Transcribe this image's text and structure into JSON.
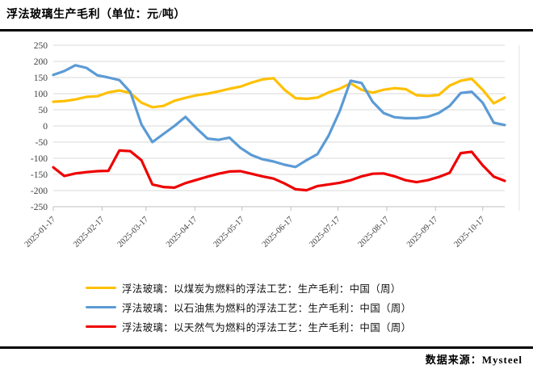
{
  "page": {
    "title": "浮法玻璃生产毛利（单位：元/吨）",
    "source": "数据来源：Mysteel"
  },
  "chart_data": {
    "type": "line",
    "title": "浮法玻璃生产毛利（单位：元/吨）",
    "ylabel": "",
    "xlabel": "",
    "ylim": [
      -250,
      250
    ],
    "ytick_step": 50,
    "grid": true,
    "legend_position": "bottom",
    "x": [
      "2025-01-17",
      "2025-01-24",
      "2025-01-31",
      "2025-02-07",
      "2025-02-14",
      "2025-02-21",
      "2025-02-28",
      "2025-03-07",
      "2025-03-14",
      "2025-03-21",
      "2025-03-28",
      "2025-04-04",
      "2025-04-11",
      "2025-04-18",
      "2025-04-25",
      "2025-05-02",
      "2025-05-09",
      "2025-05-16",
      "2025-05-23",
      "2025-05-30",
      "2025-06-06",
      "2025-06-13",
      "2025-06-20",
      "2025-06-27",
      "2025-07-04",
      "2025-07-11",
      "2025-07-18",
      "2025-07-25",
      "2025-08-01",
      "2025-08-08",
      "2025-08-15",
      "2025-08-22",
      "2025-08-29",
      "2025-09-05",
      "2025-09-12",
      "2025-09-19",
      "2025-09-26",
      "2025-10-03",
      "2025-10-10",
      "2025-10-17",
      "2025-10-24",
      "2025-10-31"
    ],
    "xticks": [
      "2025-01-17",
      "2025-02-17",
      "2025-03-17",
      "2025-04-17",
      "2025-05-17",
      "2025-06-17",
      "2025-07-17",
      "2025-08-17",
      "2025-09-17",
      "2025-10-17"
    ],
    "series": [
      {
        "name": "浮法玻璃：以煤炭为燃料的浮法工艺：生产毛利：中国（周）",
        "color": "#FFC000",
        "values": [
          75,
          77,
          82,
          90,
          92,
          104,
          110,
          102,
          72,
          58,
          62,
          78,
          87,
          95,
          100,
          107,
          115,
          122,
          134,
          144,
          148,
          112,
          86,
          84,
          88,
          104,
          115,
          132,
          112,
          103,
          112,
          117,
          114,
          95,
          93,
          96,
          125,
          140,
          146,
          112,
          70,
          88
        ]
      },
      {
        "name": "浮法玻璃：以石油焦为燃料的浮法工艺：生产毛利：中国（周）",
        "color": "#5B9BD5",
        "values": [
          158,
          170,
          188,
          180,
          157,
          150,
          142,
          105,
          5,
          -50,
          -25,
          0,
          28,
          -7,
          -39,
          -43,
          -36,
          -68,
          -90,
          -103,
          -110,
          -120,
          -127,
          -106,
          -87,
          -30,
          45,
          140,
          133,
          75,
          40,
          27,
          24,
          24,
          28,
          40,
          62,
          102,
          106,
          72,
          10,
          3
        ]
      },
      {
        "name": "浮法玻璃：以天然气为燃料的浮法工艺：生产毛利：中国（周）",
        "color": "#EE0000",
        "values": [
          -128,
          -155,
          -147,
          -143,
          -140,
          -139,
          -76,
          -78,
          -106,
          -181,
          -189,
          -191,
          -177,
          -167,
          -157,
          -148,
          -141,
          -140,
          -148,
          -156,
          -163,
          -178,
          -196,
          -199,
          -186,
          -181,
          -176,
          -168,
          -156,
          -148,
          -147,
          -156,
          -168,
          -174,
          -168,
          -158,
          -145,
          -84,
          -80,
          -122,
          -157,
          -170
        ]
      }
    ],
    "style": {
      "grid_color": "#d9d9d9",
      "axis_color": "#bfbfbf",
      "tick_label_color": "#404040",
      "line_width": 3.2
    }
  }
}
